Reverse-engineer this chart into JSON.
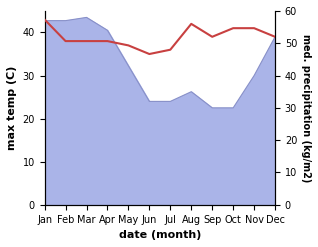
{
  "months": [
    "Jan",
    "Feb",
    "Mar",
    "Apr",
    "May",
    "Jun",
    "Jul",
    "Aug",
    "Sep",
    "Oct",
    "Nov",
    "Dec"
  ],
  "x": [
    0,
    1,
    2,
    3,
    4,
    5,
    6,
    7,
    8,
    9,
    10,
    11
  ],
  "precipitation": [
    57,
    57,
    58,
    54,
    43,
    32,
    32,
    35,
    30,
    30,
    40,
    52
  ],
  "max_temp": [
    43,
    38,
    38,
    38,
    37,
    35,
    36,
    42,
    39,
    41,
    41,
    39
  ],
  "precip_color": "#aab4e8",
  "precip_edge_color": "#8890c8",
  "temp_color": "#c84040",
  "left_ylim": [
    0,
    45
  ],
  "right_ylim": [
    0,
    60
  ],
  "left_yticks": [
    0,
    10,
    20,
    30,
    40
  ],
  "right_yticks": [
    0,
    10,
    20,
    30,
    40,
    50,
    60
  ],
  "xlabel": "date (month)",
  "ylabel_left": "max temp (C)",
  "ylabel_right": "med. precipitation (kg/m2)",
  "bg_color": "#ffffff"
}
